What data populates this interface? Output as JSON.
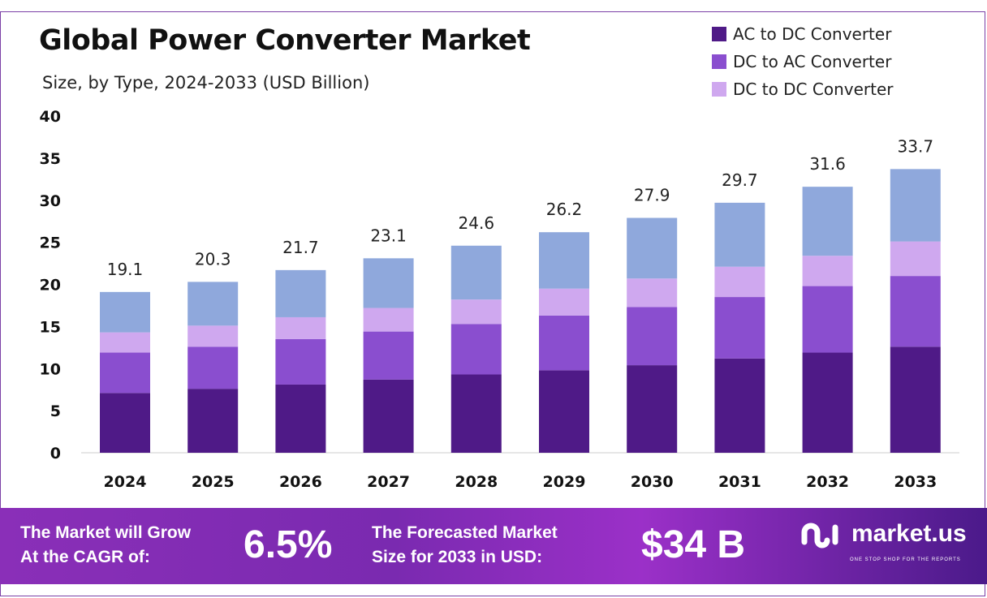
{
  "chart_data": {
    "type": "bar",
    "stacked": true,
    "title": "Global Power Converter Market",
    "subtitle": "Size, by Type, 2024-2033 (USD Billion)",
    "xlabel": "",
    "ylabel": "",
    "ylim": [
      0,
      40
    ],
    "yticks": [
      0,
      5,
      10,
      15,
      20,
      25,
      30,
      35,
      40
    ],
    "grid": false,
    "legend_position": "top-right",
    "categories": [
      "2024",
      "2025",
      "2026",
      "2027",
      "2028",
      "2029",
      "2030",
      "2031",
      "2032",
      "2033"
    ],
    "series": [
      {
        "name": "AC to DC Converter",
        "color": "#4f1a87",
        "values": [
          7.1,
          7.6,
          8.1,
          8.7,
          9.3,
          9.8,
          10.4,
          11.2,
          11.9,
          12.6
        ]
      },
      {
        "name": "DC to AC Converter",
        "color": "#8a4ecf",
        "values": [
          4.8,
          5.0,
          5.4,
          5.7,
          6.0,
          6.5,
          6.9,
          7.3,
          7.9,
          8.4
        ]
      },
      {
        "name": "DC to DC Converter",
        "color": "#cfa8ef",
        "values": [
          2.4,
          2.5,
          2.6,
          2.8,
          2.9,
          3.2,
          3.4,
          3.6,
          3.6,
          4.1
        ]
      },
      {
        "color": "#8fa8dc",
        "values": [
          4.8,
          5.2,
          5.6,
          5.9,
          6.4,
          6.7,
          7.2,
          7.6,
          8.2,
          8.6
        ]
      }
    ],
    "totals": [
      "19.1",
      "20.3",
      "21.7",
      "23.1",
      "24.6",
      "26.2",
      "27.9",
      "29.7",
      "31.6",
      "33.7"
    ]
  },
  "banner": {
    "cagr_label_1": "The Market will Grow",
    "cagr_label_2": "At the CAGR of:",
    "cagr_value": "6.5%",
    "forecast_label_1": "The Forecasted Market",
    "forecast_label_2": "Size for 2033 in USD:",
    "forecast_value": "$34 B",
    "logo_text": "market.us",
    "logo_tagline": "ONE STOP SHOP FOR THE REPORTS"
  }
}
